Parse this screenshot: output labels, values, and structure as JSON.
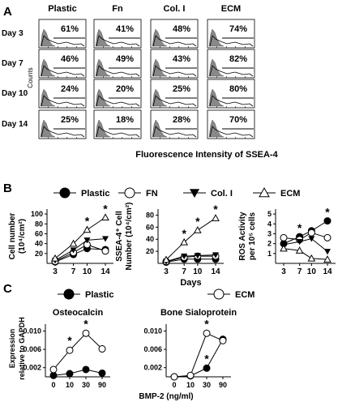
{
  "panel_labels": {
    "a": "A",
    "b": "B",
    "c": "C"
  },
  "chart_data": [
    {
      "type": "histogram_grid",
      "columns": [
        "Plastic",
        "Fn",
        "Col. I",
        "ECM"
      ],
      "rows": [
        "Day 3",
        "Day 7",
        "Day 10",
        "Day 14"
      ],
      "percent": [
        [
          "61%",
          "41%",
          "48%",
          "74%"
        ],
        [
          "46%",
          "49%",
          "43%",
          "82%"
        ],
        [
          "24%",
          "20%",
          "25%",
          "80%"
        ],
        [
          "25%",
          "18%",
          "28%",
          "70%"
        ]
      ],
      "ylabel": "Counts",
      "xlabel": "Fluorescence Intensity of SSEA-4"
    },
    {
      "type": "line",
      "legend": [
        "Plastic",
        "FN",
        "Col. I",
        "ECM"
      ],
      "legend_markers": [
        "filled-circle",
        "open-circle",
        "filled-triangle-down",
        "open-triangle-up"
      ],
      "panels": [
        {
          "ylabel_lines": [
            "Cell number",
            "(10⁴/cm²)"
          ],
          "yticks": [
            "20",
            "40",
            "60",
            "80",
            "100"
          ],
          "ylim": [
            0,
            110
          ],
          "x": [
            3,
            7,
            10,
            14
          ],
          "xticks": [
            "3",
            "7",
            "10",
            "14"
          ],
          "series": [
            {
              "name": "Plastic",
              "values": [
                3,
                18,
                30,
                28
              ]
            },
            {
              "name": "FN",
              "values": [
                4,
                22,
                38,
                25
              ]
            },
            {
              "name": "Col. I",
              "values": [
                6,
                27,
                47,
                50
              ]
            },
            {
              "name": "ECM",
              "values": [
                10,
                40,
                68,
                93
              ]
            }
          ],
          "stars_at": [
            10,
            14
          ]
        },
        {
          "ylabel_lines": [
            "SSEA-4⁺ Cell",
            "Number (10⁴/cm²)"
          ],
          "yticks": [
            "20",
            "40",
            "60",
            "80"
          ],
          "ylim": [
            0,
            90
          ],
          "x": [
            3,
            7,
            10,
            14
          ],
          "xticks": [
            "3",
            "7",
            "10",
            "14"
          ],
          "xlabel": "Days",
          "series": [
            {
              "name": "Plastic",
              "values": [
                2,
                7,
                7,
                7
              ]
            },
            {
              "name": "FN",
              "values": [
                3,
                10,
                12,
                12
              ]
            },
            {
              "name": "Col. I",
              "values": [
                3,
                12,
                13,
                14
              ]
            },
            {
              "name": "ECM",
              "values": [
                6,
                35,
                55,
                75
              ]
            }
          ],
          "stars_at": [
            7,
            10,
            14
          ]
        },
        {
          "ylabel_lines": [
            "ROS Activity",
            "per 10⁵ cells"
          ],
          "yticks": [
            "1",
            "2",
            "3",
            "4",
            "5"
          ],
          "ylim": [
            0,
            5.5
          ],
          "x": [
            3,
            7,
            10,
            14
          ],
          "xticks": [
            "3",
            "7",
            "10",
            "14"
          ],
          "series": [
            {
              "name": "Plastic",
              "values": [
                2.0,
                2.7,
                3.3,
                4.3
              ]
            },
            {
              "name": "FN",
              "values": [
                2.6,
                2.4,
                3.1,
                2.6
              ]
            },
            {
              "name": "Col. I",
              "values": [
                1.9,
                2.2,
                2.5,
                1.2
              ]
            },
            {
              "name": "ECM",
              "values": [
                1.5,
                1.3,
                0.5,
                0.4
              ]
            }
          ],
          "stars_at": [
            7,
            14
          ]
        }
      ]
    },
    {
      "type": "line",
      "legend": [
        "Plastic",
        "ECM"
      ],
      "legend_markers": [
        "filled-circle",
        "open-circle"
      ],
      "ylabel_lines": [
        "Expression",
        "relative to GAPDH"
      ],
      "xlabel": "BMP-2 (ng/ml)",
      "panels": [
        {
          "title": "Osteocalcin",
          "yticks": [
            "0.002",
            "0.006",
            "0.010"
          ],
          "ylim": [
            0,
            0.0115
          ],
          "x": [
            "0",
            "10",
            "30",
            "90"
          ],
          "series": [
            {
              "name": "Plastic",
              "values": [
                0.0003,
                0.0007,
                0.0016,
                0.0008
              ]
            },
            {
              "name": "ECM",
              "values": [
                0.0016,
                0.0058,
                0.0095,
                0.0061
              ]
            }
          ],
          "stars_at": [
            10,
            30
          ]
        },
        {
          "title": "Bone Sialoprotein",
          "yticks": [
            "0.002",
            "0.006",
            "0.010"
          ],
          "ylim": [
            0,
            0.0115
          ],
          "x": [
            "0",
            "10",
            "30",
            "90"
          ],
          "series": [
            {
              "name": "Plastic",
              "values": [
                0.0,
                0.0002,
                0.0019,
                0.0082
              ]
            },
            {
              "name": "ECM",
              "values": [
                0.0,
                0.0003,
                0.0095,
                0.0079
              ]
            }
          ],
          "stars_at": [
            30,
            30
          ]
        }
      ]
    }
  ]
}
